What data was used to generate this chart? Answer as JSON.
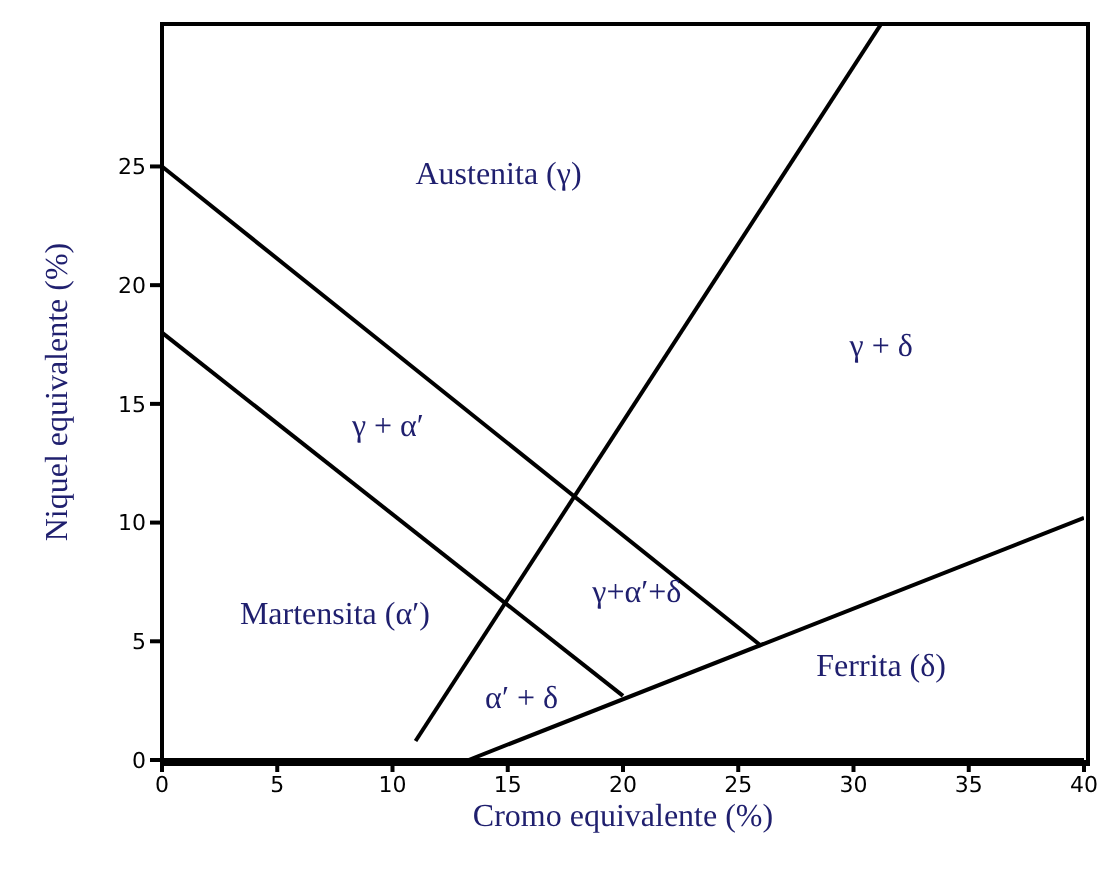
{
  "chart_data": {
    "type": "line",
    "xlabel": "Cromo equivalente (%)",
    "ylabel": "Niquel equivalente (%)",
    "xlim": [
      0,
      40
    ],
    "ylim": [
      0,
      31
    ],
    "xticks": [
      0,
      5,
      10,
      15,
      20,
      25,
      30,
      35,
      40
    ],
    "yticks": [
      0,
      5,
      10,
      15,
      20,
      25
    ],
    "grid": false,
    "marker": "none",
    "line_style": "solid",
    "series": [
      {
        "color": "#000000",
        "x": [
          0,
          26
        ],
        "values": [
          25,
          4.8
        ]
      },
      {
        "color": "#000000",
        "x": [
          0,
          20
        ],
        "values": [
          18,
          2.7
        ]
      },
      {
        "color": "#000000",
        "x": [
          11,
          31.2
        ],
        "values": [
          0.8,
          31
        ]
      },
      {
        "color": "#000000",
        "x": [
          13.3,
          40
        ],
        "values": [
          0,
          10.2
        ]
      }
    ],
    "annotations": [
      "Austenita (γ)",
      "γ + δ",
      "γ + α′",
      "Martensita (α′)",
      "γ+α′+δ",
      "α′ + δ",
      "Ferrita (δ)"
    ]
  }
}
